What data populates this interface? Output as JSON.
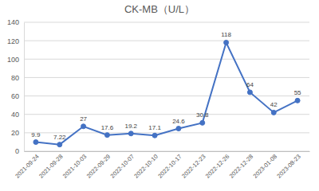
{
  "chart_data": {
    "type": "line",
    "title": "CK-MB（U/L）",
    "categories": [
      "2021-09-24",
      "2021-09-28",
      "2021-10-03",
      "2022-09-29",
      "2022-10-07",
      "2022-10-10",
      "2022-10-17",
      "2022-12-23",
      "2022-12-26",
      "2022-12-28",
      "2023-01-08",
      "2023-08-23"
    ],
    "values": [
      9.9,
      7.22,
      27,
      17.6,
      19.2,
      17.1,
      24.6,
      30.8,
      118,
      64,
      42,
      55
    ],
    "color": "#4472c4",
    "marker": "circle",
    "ylim": [
      0,
      140
    ],
    "yticks": [
      0,
      20,
      40,
      60,
      80,
      100,
      120,
      140
    ],
    "grid": true,
    "data_labels": true
  }
}
